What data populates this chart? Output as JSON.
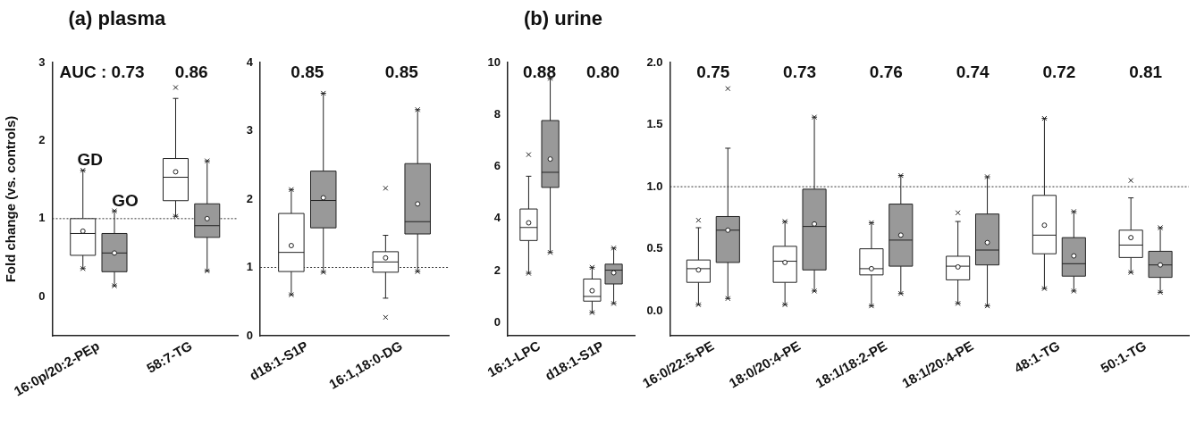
{
  "chart_data": [
    {
      "type": "box",
      "title": "(a) plasma",
      "ylabel": "Fold change (vs. controls)",
      "categories": [
        "16:0p/20:2-PEp",
        "58:7-TG"
      ],
      "ylim": [
        -0.5,
        3
      ],
      "yticks": [
        0,
        1,
        2,
        3
      ],
      "grid": false,
      "legend": false,
      "annotations": [
        "AUC : 0.73",
        "0.86"
      ],
      "ref_lines": [
        {
          "axis": "y",
          "value": 1,
          "line_style": "dotted"
        }
      ],
      "series": [
        {
          "name": "GD",
          "color": "#ffffff",
          "boxes": [
            {
              "low": 0.36,
              "q1": 0.53,
              "median": 0.81,
              "q3": 1.0,
              "high": 1.62,
              "mean": 0.84,
              "outliers": [
                1.62,
                0.36
              ]
            },
            {
              "low": 1.03,
              "q1": 1.23,
              "median": 1.53,
              "q3": 1.77,
              "high": 2.54,
              "mean": 1.6,
              "outliers": [
                2.68,
                1.03
              ]
            }
          ]
        },
        {
          "name": "GO",
          "color": "#999999",
          "boxes": [
            {
              "low": 0.14,
              "q1": 0.32,
              "median": 0.56,
              "q3": 0.81,
              "high": 1.1,
              "mean": 0.56,
              "outliers": [
                1.1,
                0.14
              ]
            },
            {
              "low": 0.33,
              "q1": 0.76,
              "median": 0.91,
              "q3": 1.19,
              "high": 1.74,
              "mean": 1.0,
              "outliers": [
                1.74,
                0.33
              ]
            }
          ]
        }
      ]
    },
    {
      "type": "box",
      "categories": [
        "d18:1-S1P",
        "16:1,18:0-DG"
      ],
      "ylim": [
        0,
        4
      ],
      "yticks": [
        0,
        1,
        2,
        3,
        4
      ],
      "grid": false,
      "legend": false,
      "annotations": [
        "0.85",
        "0.85"
      ],
      "ref_lines": [
        {
          "axis": "y",
          "value": 1,
          "line_style": "dotted"
        }
      ],
      "series": [
        {
          "color": "#ffffff",
          "boxes": [
            {
              "low": 0.6,
              "q1": 0.94,
              "median": 1.22,
              "q3": 1.79,
              "high": 2.14,
              "mean": 1.32,
              "outliers": [
                2.14,
                0.6
              ]
            },
            {
              "low": 0.55,
              "q1": 0.93,
              "median": 1.08,
              "q3": 1.23,
              "high": 1.47,
              "mean": 1.14,
              "outliers": [
                2.16,
                0.27
              ]
            }
          ]
        },
        {
          "color": "#999999",
          "boxes": [
            {
              "low": 0.93,
              "q1": 1.58,
              "median": 1.98,
              "q3": 2.41,
              "high": 3.55,
              "mean": 2.02,
              "outliers": [
                3.55,
                0.93
              ]
            },
            {
              "low": 0.94,
              "q1": 1.49,
              "median": 1.67,
              "q3": 2.52,
              "high": 3.31,
              "mean": 1.93,
              "outliers": [
                3.31,
                0.94
              ]
            }
          ]
        }
      ]
    },
    {
      "type": "box",
      "title": "(b) urine",
      "categories": [
        "16:1-LPC",
        "d18:1-S1P"
      ],
      "ylim": [
        -0.5,
        10
      ],
      "yticks": [
        0,
        2,
        4,
        6,
        8,
        10
      ],
      "grid": false,
      "legend": false,
      "annotations": [
        "0.88",
        "0.80"
      ],
      "series": [
        {
          "color": "#ffffff",
          "boxes": [
            {
              "low": 1.9,
              "q1": 3.16,
              "median": 3.66,
              "q3": 4.37,
              "high": 5.63,
              "mean": 3.84,
              "outliers": [
                6.46,
                1.9
              ]
            },
            {
              "low": 0.39,
              "q1": 0.83,
              "median": 1.01,
              "q3": 1.68,
              "high": 2.13,
              "mean": 1.23,
              "outliers": [
                2.13,
                0.39
              ]
            }
          ]
        },
        {
          "color": "#999999",
          "boxes": [
            {
              "low": 2.7,
              "q1": 5.2,
              "median": 5.78,
              "q3": 7.77,
              "high": 9.39,
              "mean": 6.29,
              "outliers": [
                9.39,
                2.7
              ]
            },
            {
              "low": 0.74,
              "q1": 1.49,
              "median": 2.02,
              "q3": 2.25,
              "high": 2.87,
              "mean": 1.92,
              "outliers": [
                2.87,
                0.74
              ]
            }
          ]
        }
      ]
    },
    {
      "type": "box",
      "categories": [
        "16:0/22:5-PE",
        "18:0/20:4-PE",
        "18:1/18:2-PE",
        "18:1/20:4-PE",
        "48:1-TG",
        "50:1-TG"
      ],
      "ylim": [
        -0.2,
        2.0
      ],
      "yticks": [
        {
          "value": 0,
          "label": "0.0"
        },
        {
          "value": 0.5,
          "label": "0.5"
        },
        {
          "value": 1,
          "label": "1.0"
        },
        {
          "value": 1.5,
          "label": "1.5"
        },
        {
          "value": 2,
          "label": "2.0"
        }
      ],
      "grid": false,
      "legend": false,
      "annotations": [
        "0.75",
        "0.73",
        "0.76",
        "0.74",
        "0.72",
        "0.81"
      ],
      "ref_lines": [
        {
          "axis": "y",
          "value": 1,
          "line_style": "dotted"
        }
      ],
      "series": [
        {
          "color": "#ffffff",
          "boxes": [
            {
              "low": 0.05,
              "q1": 0.23,
              "median": 0.34,
              "q3": 0.41,
              "high": 0.67,
              "mean": 0.33,
              "outliers": [
                0.73,
                0.05
              ]
            },
            {
              "low": 0.05,
              "q1": 0.23,
              "median": 0.4,
              "q3": 0.52,
              "high": 0.72,
              "mean": 0.39,
              "outliers": [
                0.72,
                0.05
              ]
            },
            {
              "low": 0.04,
              "q1": 0.29,
              "median": 0.34,
              "q3": 0.5,
              "high": 0.71,
              "mean": 0.34,
              "outliers": [
                0.71,
                0.04
              ]
            },
            {
              "low": 0.06,
              "q1": 0.25,
              "median": 0.36,
              "q3": 0.44,
              "high": 0.72,
              "mean": 0.354,
              "outliers": [
                0.79,
                0.06
              ]
            },
            {
              "low": 0.18,
              "q1": 0.46,
              "median": 0.61,
              "q3": 0.93,
              "high": 1.55,
              "mean": 0.69,
              "outliers": [
                1.55,
                0.18
              ]
            },
            {
              "low": 0.31,
              "q1": 0.43,
              "median": 0.53,
              "q3": 0.65,
              "high": 0.91,
              "mean": 0.59,
              "outliers": [
                1.05,
                0.31
              ]
            }
          ]
        },
        {
          "color": "#999999",
          "boxes": [
            {
              "low": 0.1,
              "q1": 0.39,
              "median": 0.65,
              "q3": 0.76,
              "high": 1.31,
              "mean": 0.65,
              "outliers": [
                1.79,
                0.1
              ]
            },
            {
              "low": 0.16,
              "q1": 0.33,
              "median": 0.68,
              "q3": 0.98,
              "high": 1.56,
              "mean": 0.7,
              "outliers": [
                1.56,
                0.16
              ]
            },
            {
              "low": 0.14,
              "q1": 0.36,
              "median": 0.57,
              "q3": 0.86,
              "high": 1.09,
              "mean": 0.61,
              "outliers": [
                1.09,
                0.14
              ]
            },
            {
              "low": 0.04,
              "q1": 0.37,
              "median": 0.49,
              "q3": 0.78,
              "high": 1.08,
              "mean": 0.55,
              "outliers": [
                1.08,
                0.04
              ]
            },
            {
              "low": 0.16,
              "q1": 0.28,
              "median": 0.38,
              "q3": 0.59,
              "high": 0.8,
              "mean": 0.443,
              "outliers": [
                0.8,
                0.16
              ]
            },
            {
              "low": 0.15,
              "q1": 0.27,
              "median": 0.37,
              "q3": 0.48,
              "high": 0.67,
              "mean": 0.37,
              "outliers": [
                0.67,
                0.15
              ]
            }
          ]
        }
      ]
    }
  ]
}
